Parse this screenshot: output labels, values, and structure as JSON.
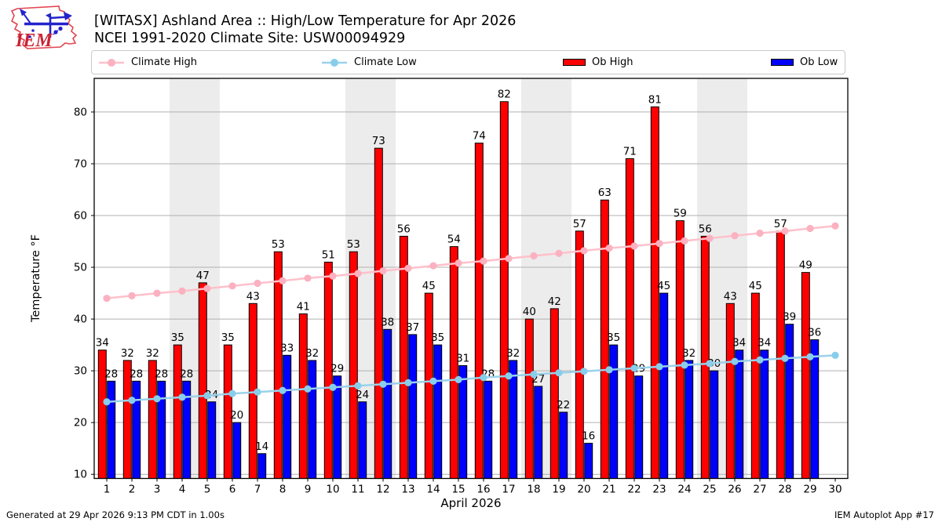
{
  "header": {
    "logo_text": "IEM",
    "title_line1": "[WITASX] Ashland Area :: High/Low Temperature for Apr 2026",
    "title_line2": "NCEI 1991-2020 Climate Site: USW00094929"
  },
  "legend": {
    "items": [
      {
        "label": "Climate High",
        "swatch": "line",
        "color": "#ffc0cb",
        "marker_color": "#fbb1c0"
      },
      {
        "label": "Climate Low",
        "swatch": "line",
        "color": "#9ad2ea",
        "marker_color": "#87ceeb"
      },
      {
        "label": "Ob High",
        "swatch": "bar",
        "color": "#ff0000"
      },
      {
        "label": "Ob Low",
        "swatch": "bar",
        "color": "#0000ff"
      }
    ]
  },
  "chart_data": {
    "type": "bar",
    "title": "[WITASX] Ashland Area :: High/Low Temperature for Apr 2026",
    "subtitle": "NCEI 1991-2020 Climate Site: USW00094929",
    "xlabel": "April 2026",
    "ylabel": "Temperature °F",
    "x": [
      1,
      2,
      3,
      4,
      5,
      6,
      7,
      8,
      9,
      10,
      11,
      12,
      13,
      14,
      15,
      16,
      17,
      18,
      19,
      20,
      21,
      22,
      23,
      24,
      25,
      26,
      27,
      28,
      29,
      30
    ],
    "ylim": [
      9.2,
      86.5
    ],
    "yticks": [
      10,
      20,
      30,
      40,
      50,
      60,
      70,
      80
    ],
    "grid": "horizontal",
    "grid_color": "#b0b0b0",
    "band_color": "#ececec",
    "weekend_bands": [
      [
        4,
        5
      ],
      [
        11,
        12
      ],
      [
        18,
        19
      ],
      [
        25,
        26
      ]
    ],
    "legend_position": "top",
    "series": [
      {
        "name": "Ob High",
        "type": "bar",
        "color": "#ff0000",
        "values": [
          34,
          32,
          32,
          35,
          47,
          35,
          43,
          53,
          41,
          51,
          53,
          73,
          56,
          45,
          54,
          74,
          82,
          40,
          42,
          57,
          63,
          71,
          81,
          59,
          56,
          43,
          45,
          57,
          49,
          null
        ]
      },
      {
        "name": "Ob Low",
        "type": "bar",
        "color": "#0000ff",
        "values": [
          28,
          28,
          28,
          28,
          24,
          20,
          14,
          33,
          32,
          29,
          24,
          38,
          37,
          35,
          31,
          28,
          32,
          27,
          22,
          16,
          35,
          29,
          45,
          32,
          30,
          34,
          34,
          39,
          36,
          null
        ]
      },
      {
        "name": "Climate High",
        "type": "line",
        "color": "#ffc0cb",
        "marker_color": "#fbb1c0",
        "values": [
          44.0,
          44.5,
          45.0,
          45.4,
          45.9,
          46.4,
          46.9,
          47.4,
          47.9,
          48.3,
          48.8,
          49.3,
          49.8,
          50.3,
          50.8,
          51.2,
          51.7,
          52.2,
          52.7,
          53.2,
          53.7,
          54.1,
          54.6,
          55.1,
          55.6,
          56.1,
          56.6,
          57.0,
          57.5,
          58.0
        ]
      },
      {
        "name": "Climate Low",
        "type": "line",
        "color": "#9ad2ea",
        "marker_color": "#87ceeb",
        "values": [
          24.0,
          24.3,
          24.6,
          24.9,
          25.2,
          25.6,
          25.9,
          26.2,
          26.5,
          26.8,
          27.1,
          27.4,
          27.7,
          28.0,
          28.3,
          28.7,
          29.0,
          29.3,
          29.6,
          29.9,
          30.2,
          30.5,
          30.8,
          31.1,
          31.4,
          31.8,
          32.1,
          32.4,
          32.7,
          33.0
        ]
      }
    ]
  },
  "footer": {
    "left": "Generated at 29 Apr 2026 9:13 PM CDT in 1.00s",
    "right": "IEM Autoplot App #17"
  }
}
